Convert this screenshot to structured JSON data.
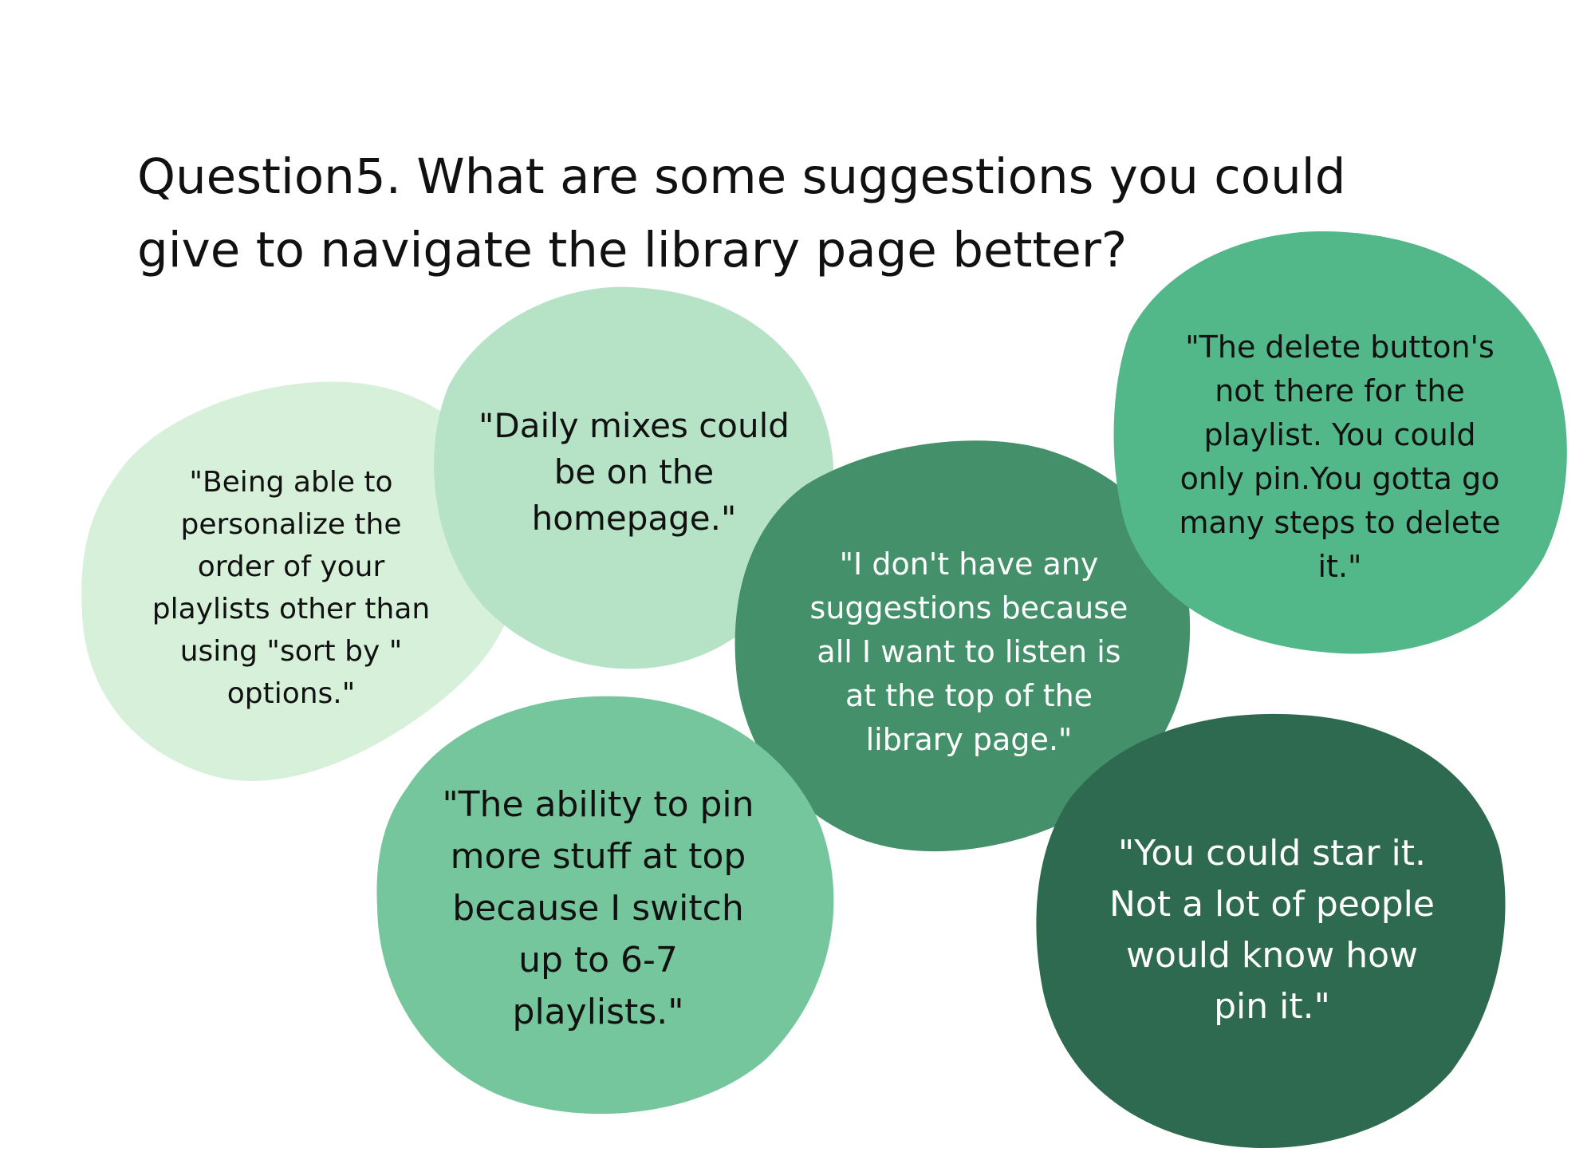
{
  "title": {
    "lines": [
      "Question5. What are some suggestions you could",
      "give to navigate the library page better?"
    ]
  },
  "bubbles": [
    {
      "color": "#d6f0da",
      "lines": [
        "\"Being able to",
        "personalize the",
        "order of your",
        "playlists other than",
        "using \"sort by \"",
        "options.\""
      ]
    },
    {
      "color": "#b6e3c6",
      "lines": [
        "\"Daily mixes could",
        "be on the",
        "homepage.\""
      ]
    },
    {
      "color": "#43906b",
      "lines": [
        "\"I don't have any",
        "suggestions because",
        "all I want to listen is",
        "at the top of the",
        "library page.\""
      ]
    },
    {
      "color": "#52b789",
      "lines": [
        "\"The delete button's",
        "not there for the",
        "playlist. You could",
        "only pin.You gotta go",
        "many steps to delete",
        "it.\""
      ]
    },
    {
      "color": "#75c69d",
      "lines": [
        "\"The ability to pin",
        "more stuff at top",
        "because I switch",
        "up to 6-7",
        "playlists.\""
      ]
    },
    {
      "color": "#2e6a4f",
      "lines": [
        "\"You could star it.",
        "Not a lot of people",
        "would know how",
        "pin it.\""
      ]
    }
  ]
}
